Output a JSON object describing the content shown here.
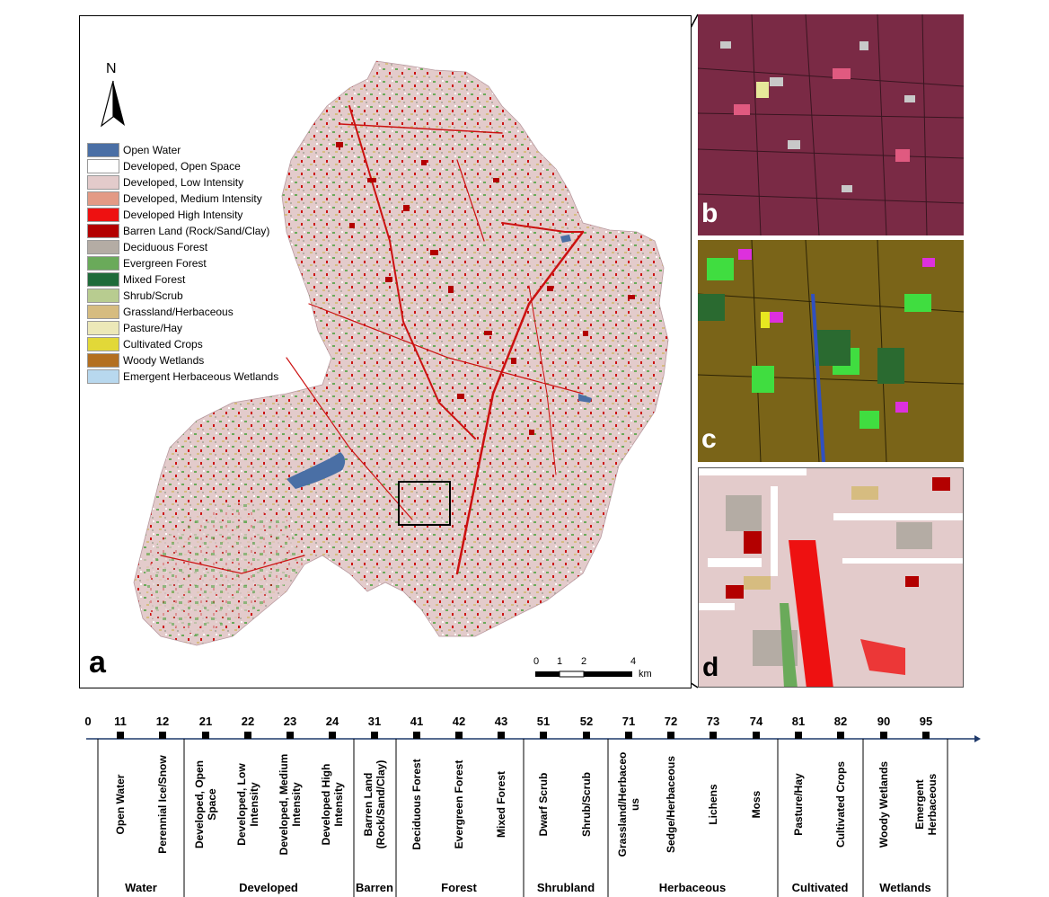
{
  "main_map": {
    "north_label": "N",
    "panel_label": "a",
    "scale": {
      "ticks": [
        "0",
        "1",
        "2",
        "4"
      ],
      "unit": "km"
    },
    "legend": [
      {
        "label": "Open Water",
        "color": "#4a6fa5"
      },
      {
        "label": "Developed, Open Space",
        "color": "#ffffff"
      },
      {
        "label": "Developed, Low Intensity",
        "color": "#e3cbcb"
      },
      {
        "label": "Developed, Medium Intensity",
        "color": "#e39a85"
      },
      {
        "label": "Developed High Intensity",
        "color": "#ee1111"
      },
      {
        "label": "Barren Land (Rock/Sand/Clay)",
        "color": "#b30000"
      },
      {
        "label": "Deciduous Forest",
        "color": "#b4aca4"
      },
      {
        "label": "Evergreen Forest",
        "color": "#6aaa5a"
      },
      {
        "label": "Mixed Forest",
        "color": "#1f6b3a"
      },
      {
        "label": "Shrub/Scrub",
        "color": "#b8cc90"
      },
      {
        "label": "Grassland/Herbaceous",
        "color": "#d6bc80"
      },
      {
        "label": "Pasture/Hay",
        "color": "#ece8b8"
      },
      {
        "label": "Cultivated Crops",
        "color": "#e2d838"
      },
      {
        "label": "Woody Wetlands",
        "color": "#b36f20"
      },
      {
        "label": "Emergent Herbaceous Wetlands",
        "color": "#b8d8ee"
      }
    ]
  },
  "insets": [
    {
      "label": "b"
    },
    {
      "label": "c"
    },
    {
      "label": "d"
    }
  ],
  "classification": {
    "axis_start": "0",
    "codes": [
      {
        "code": "11",
        "name": "Open Water"
      },
      {
        "code": "12",
        "name": "Perennial Ice/Snow"
      },
      {
        "code": "21",
        "name": "Developed, Open Space"
      },
      {
        "code": "22",
        "name": "Developed, Low Intensity"
      },
      {
        "code": "23",
        "name": "Developed, Medium Intensity"
      },
      {
        "code": "24",
        "name": "Developed High Intensity"
      },
      {
        "code": "31",
        "name": "Barren Land (Rock/Sand/Clay)"
      },
      {
        "code": "41",
        "name": "Deciduous Forest"
      },
      {
        "code": "42",
        "name": "Evergreen Forest"
      },
      {
        "code": "43",
        "name": "Mixed Forest"
      },
      {
        "code": "51",
        "name": "Dwarf Scrub"
      },
      {
        "code": "52",
        "name": "Shrub/Scrub"
      },
      {
        "code": "71",
        "name": "Grassland/Herbaceo us"
      },
      {
        "code": "72",
        "name": "Sedge/Herbaceous"
      },
      {
        "code": "73",
        "name": "Lichens"
      },
      {
        "code": "74",
        "name": "Moss"
      },
      {
        "code": "81",
        "name": "Pasture/Hay"
      },
      {
        "code": "82",
        "name": "Cultivated Crops"
      },
      {
        "code": "90",
        "name": "Woody Wetlands"
      },
      {
        "code": "95",
        "name": "Emergent Herbaceous"
      }
    ],
    "groups": [
      "Water",
      "Developed",
      "Barren",
      "Forest",
      "Shrubland",
      "Herbaceous",
      "Cultivated",
      "Wetlands"
    ]
  }
}
